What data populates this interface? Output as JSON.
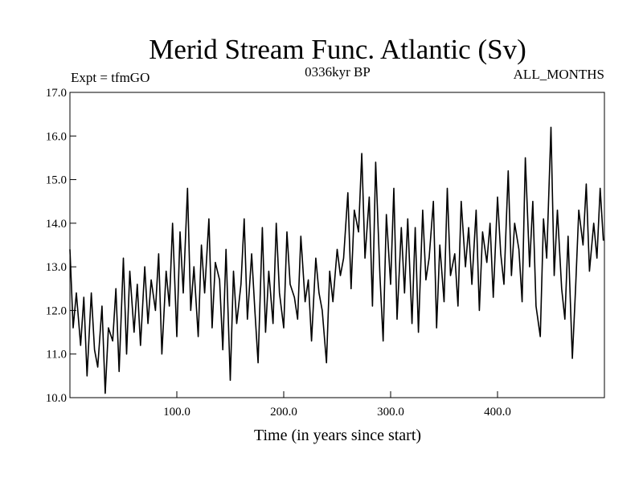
{
  "chart_data": {
    "type": "line",
    "title": "Merid Stream Func. Atlantic (Sv)",
    "subtitle_left": "Expt = tfmGO",
    "subtitle_center": "0336kyr BP",
    "subtitle_right": "ALL_MONTHS",
    "xlabel": "Time (in years since start)",
    "ylabel": "",
    "xlim": [
      0,
      500
    ],
    "ylim": [
      10.0,
      17.0
    ],
    "x_ticks": [
      100,
      200,
      300,
      400
    ],
    "x_tick_labels": [
      "100.0",
      "200.0",
      "300.0",
      "400.0"
    ],
    "y_ticks": [
      10,
      11,
      12,
      13,
      14,
      15,
      16,
      17
    ],
    "y_tick_labels": [
      "10.0",
      "11.0",
      "12.0",
      "13.0",
      "14.0",
      "15.0",
      "16.0",
      "17.0"
    ],
    "grid": false,
    "legend": "none",
    "line_color": "#000000",
    "series": [
      {
        "x": [
          0,
          3,
          6,
          10,
          13,
          16,
          20,
          23,
          26,
          30,
          33,
          36,
          40,
          43,
          46,
          50,
          53,
          56,
          60,
          63,
          66,
          70,
          73,
          76,
          80,
          83,
          86,
          90,
          93,
          96,
          100,
          103,
          106,
          110,
          113,
          116,
          120,
          123,
          126,
          130,
          133,
          136,
          140,
          143,
          146,
          150,
          153,
          156,
          160,
          163,
          166,
          170,
          173,
          176,
          180,
          183,
          186,
          190,
          193,
          196,
          200,
          203,
          206,
          210,
          213,
          216,
          220,
          223,
          226,
          230,
          233,
          236,
          240,
          243,
          246,
          250,
          253,
          256,
          260,
          263,
          266,
          270,
          273,
          276,
          280,
          283,
          286,
          290,
          293,
          296,
          300,
          303,
          306,
          310,
          313,
          316,
          320,
          323,
          326,
          330,
          333,
          336,
          340,
          343,
          346,
          350,
          353,
          356,
          360,
          363,
          366,
          370,
          373,
          376,
          380,
          383,
          386,
          390,
          393,
          396,
          400,
          403,
          406,
          410,
          413,
          416,
          420,
          423,
          426,
          430,
          433,
          436,
          440,
          443,
          446,
          450,
          453,
          456,
          460,
          463,
          466,
          470,
          473,
          476,
          480,
          483,
          486,
          490,
          493,
          496,
          499
        ],
        "values": [
          13.4,
          11.6,
          12.4,
          11.2,
          12.3,
          10.5,
          12.4,
          11.1,
          10.7,
          12.1,
          10.1,
          11.6,
          11.3,
          12.5,
          10.6,
          13.2,
          11.0,
          12.9,
          11.5,
          12.6,
          11.2,
          13.0,
          11.7,
          12.7,
          12.0,
          13.3,
          11.0,
          12.9,
          12.1,
          14.0,
          11.4,
          13.8,
          12.4,
          14.8,
          12.0,
          13.0,
          11.4,
          13.5,
          12.4,
          14.1,
          11.6,
          13.1,
          12.7,
          11.1,
          13.4,
          10.4,
          12.9,
          11.7,
          12.6,
          14.1,
          11.8,
          13.3,
          12.0,
          10.8,
          13.9,
          11.5,
          12.9,
          11.7,
          14.0,
          12.4,
          11.6,
          13.8,
          12.6,
          12.3,
          11.8,
          13.7,
          12.2,
          12.7,
          11.3,
          13.2,
          12.4,
          12.0,
          10.8,
          12.9,
          12.2,
          13.4,
          12.8,
          13.2,
          14.7,
          12.5,
          14.3,
          13.8,
          15.6,
          13.2,
          14.6,
          12.1,
          15.4,
          12.8,
          11.3,
          14.2,
          12.6,
          14.8,
          11.8,
          13.9,
          12.4,
          14.1,
          11.7,
          13.9,
          11.5,
          14.3,
          12.7,
          13.2,
          14.5,
          11.6,
          13.5,
          12.2,
          14.8,
          12.8,
          13.3,
          12.1,
          14.5,
          13.0,
          13.9,
          12.6,
          14.3,
          12.0,
          13.8,
          13.1,
          14.0,
          12.3,
          14.6,
          13.3,
          12.6,
          15.2,
          12.8,
          14.0,
          13.4,
          12.2,
          15.5,
          13.0,
          14.5,
          12.1,
          11.4,
          14.1,
          13.2,
          16.2,
          12.8,
          14.3,
          12.5,
          11.8,
          13.7,
          10.9,
          12.5,
          14.3,
          13.5,
          14.9,
          12.9,
          14.0,
          13.2,
          14.8,
          13.6
        ]
      }
    ]
  }
}
